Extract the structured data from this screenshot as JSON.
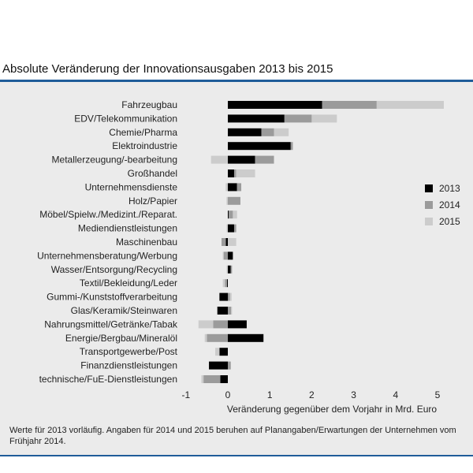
{
  "title": "Absolute Veränderung der Innovationsausgaben 2013 bis 2015",
  "footnote": "Werte für 2013 vorläufig. Angaben für 2014 und 2015 beruhen auf Planangaben/Erwartungen der Unternehmen vom Frühjahr 2014.",
  "colors": {
    "s2013": "#000000",
    "s2014": "#9b9b9b",
    "s2015": "#cccccc",
    "accent": "#1f5c99",
    "panel": "#ebebeb"
  },
  "chart_data": {
    "type": "bar",
    "orientation": "horizontal",
    "stacked": true,
    "title": "Absolute Veränderung der Innovationsausgaben 2013 bis 2015",
    "xlabel": "Veränderung gegenüber dem Vorjahr in Mrd. Euro",
    "ylabel": "",
    "xlim": [
      -1,
      5
    ],
    "xticks": [
      -1,
      0,
      1,
      2,
      3,
      4,
      5
    ],
    "legend_position": "right",
    "categories": [
      "Fahrzeugbau",
      "EDV/Telekommunikation",
      "Chemie/Pharma",
      "Elektroindustrie",
      "Metallerzeugung/-bearbeitung",
      "Großhandel",
      "Unternehmensdienste",
      "Holz/Papier",
      "Möbel/Spielw./Medizint./Reparat.",
      "Mediendienstleistungen",
      "Maschinenbau",
      "Unternehmensberatung/Werbung",
      "Wasser/Entsorgung/Recycling",
      "Textil/Bekleidung/Leder",
      "Gummi-/Kunststoffverarbeitung",
      "Glas/Keramik/Steinwaren",
      "Nahrungsmittel/Getränke/Tabak",
      "Energie/Bergbau/Mineralöl",
      "Transportgewerbe/Post",
      "Finanzdienstleistungen",
      "technische/FuE-Dienstleistungen"
    ],
    "series": [
      {
        "name": "2013",
        "color": "#000000",
        "values": [
          2.25,
          1.35,
          0.8,
          1.5,
          0.65,
          0.15,
          0.22,
          0.0,
          0.02,
          0.15,
          -0.05,
          0.12,
          0.07,
          -0.02,
          -0.2,
          -0.25,
          0.45,
          0.85,
          -0.2,
          -0.45,
          -0.18
        ]
      },
      {
        "name": "2014",
        "color": "#9b9b9b",
        "values": [
          1.3,
          0.65,
          0.3,
          0.05,
          0.45,
          0.05,
          0.1,
          0.3,
          0.1,
          0.05,
          -0.1,
          -0.1,
          0.03,
          -0.05,
          0.05,
          0.08,
          -0.35,
          -0.5,
          0.0,
          0.07,
          -0.4
        ]
      },
      {
        "name": "2015",
        "color": "#cccccc",
        "values": [
          1.6,
          0.6,
          0.35,
          0.0,
          -0.4,
          0.45,
          -0.05,
          -0.03,
          0.1,
          -0.03,
          0.2,
          -0.02,
          -0.03,
          -0.05,
          0.04,
          0.02,
          -0.35,
          -0.05,
          -0.1,
          0.0,
          -0.05
        ]
      }
    ]
  }
}
